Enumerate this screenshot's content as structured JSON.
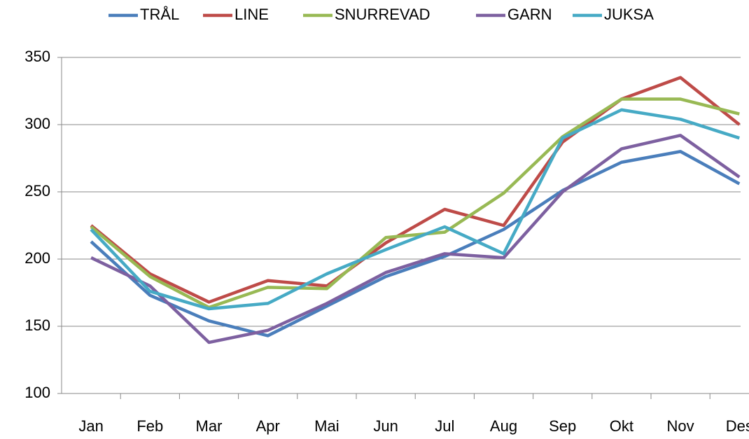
{
  "chart_data": {
    "type": "line",
    "categories": [
      "Jan",
      "Feb",
      "Mar",
      "Apr",
      "Mai",
      "Jun",
      "Jul",
      "Aug",
      "Sep",
      "Okt",
      "Nov",
      "Des"
    ],
    "series": [
      {
        "name": "TRÅL",
        "color": "#4a7ebb",
        "values": [
          213,
          173,
          154,
          143,
          165,
          187,
          202,
          222,
          251,
          272,
          280,
          256
        ]
      },
      {
        "name": "LINE",
        "color": "#be4b48",
        "values": [
          225,
          189,
          168,
          184,
          180,
          212,
          237,
          225,
          287,
          319,
          335,
          300
        ]
      },
      {
        "name": "SNURREVAD",
        "color": "#98b954",
        "values": [
          224,
          187,
          164,
          179,
          178,
          216,
          220,
          249,
          291,
          319,
          319,
          308
        ]
      },
      {
        "name": "GARN",
        "color": "#7d60a0",
        "values": [
          201,
          180,
          138,
          147,
          167,
          190,
          204,
          201,
          250,
          282,
          292,
          261
        ]
      },
      {
        "name": "JUKSA",
        "color": "#46aac5",
        "values": [
          222,
          176,
          163,
          167,
          189,
          207,
          224,
          204,
          290,
          311,
          304,
          290
        ]
      }
    ],
    "ylim": [
      100,
      350
    ],
    "yticks": [
      100,
      150,
      200,
      250,
      300,
      350
    ],
    "grid": true,
    "legend": "top"
  }
}
